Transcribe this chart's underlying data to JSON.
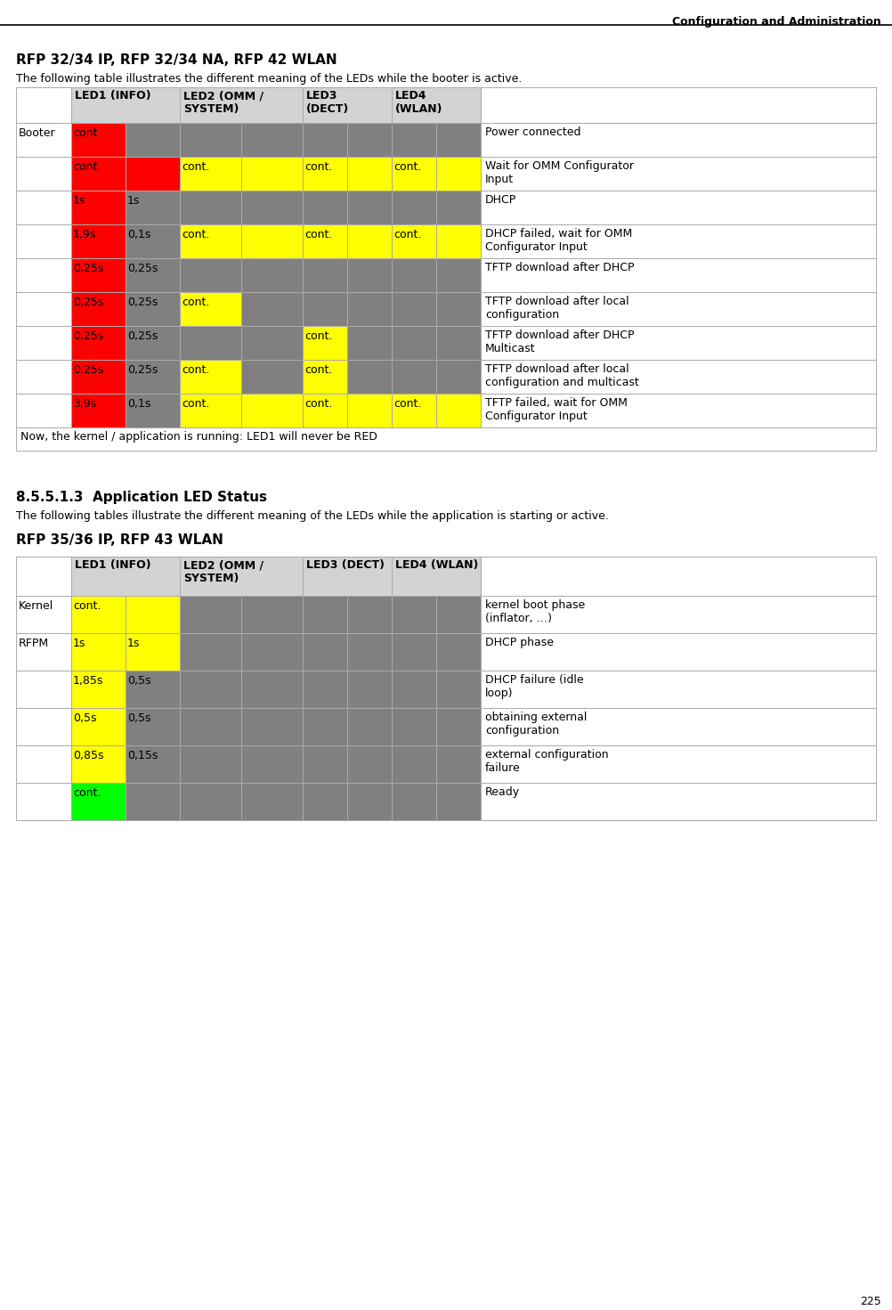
{
  "header_title": "Configuration and Administration",
  "page_number": "225",
  "section1_title": "RFP 32/34 IP, RFP 32/34 NA, RFP 42 WLAN",
  "section1_subtitle": "The following table illustrates the different meaning of the LEDs while the booter is active.",
  "section2_heading": "8.5.5.1.3  Application LED Status",
  "section2_subtitle": "The following tables illustrate the different meaning of the LEDs while the application is starting or active.",
  "section2_title": "RFP 35/36 IP, RFP 43 WLAN",
  "table1_headers": [
    "",
    "LED1 (INFO)",
    "LED2 (OMM /\nSYSTEM)",
    "LED3\n(DECT)",
    "LED4\n(WLAN)",
    ""
  ],
  "table1_rows": [
    {
      "col0": "Booter",
      "col1a": "cont.",
      "col1a_color": "#FF0000",
      "col1b": "",
      "col1b_color": "#808080",
      "col2a": "",
      "col2a_color": "#808080",
      "col2b": "",
      "col2b_color": "#808080",
      "col3a": "",
      "col3a_color": "#808080",
      "col3b": "",
      "col3b_color": "#808080",
      "col4a": "",
      "col4a_color": "#808080",
      "col4b": "",
      "col4b_color": "#808080",
      "col5": "Power connected"
    },
    {
      "col0": "",
      "col1a": "cont.",
      "col1a_color": "#FF0000",
      "col1b": "",
      "col1b_color": "#FF0000",
      "col2a": "cont.",
      "col2a_color": "#FFFF00",
      "col2b": "",
      "col2b_color": "#FFFF00",
      "col3a": "cont.",
      "col3a_color": "#FFFF00",
      "col3b": "",
      "col3b_color": "#FFFF00",
      "col4a": "cont.",
      "col4a_color": "#FFFF00",
      "col4b": "",
      "col4b_color": "#FFFF00",
      "col5": "Wait for OMM Configurator\nInput"
    },
    {
      "col0": "",
      "col1a": "1s",
      "col1a_color": "#FF0000",
      "col1b": "1s",
      "col1b_color": "#808080",
      "col2a": "",
      "col2a_color": "#808080",
      "col2b": "",
      "col2b_color": "#808080",
      "col3a": "",
      "col3a_color": "#808080",
      "col3b": "",
      "col3b_color": "#808080",
      "col4a": "",
      "col4a_color": "#808080",
      "col4b": "",
      "col4b_color": "#808080",
      "col5": "DHCP"
    },
    {
      "col0": "",
      "col1a": "1,9s",
      "col1a_color": "#FF0000",
      "col1b": "0,1s",
      "col1b_color": "#808080",
      "col2a": "cont.",
      "col2a_color": "#FFFF00",
      "col2b": "",
      "col2b_color": "#FFFF00",
      "col3a": "cont.",
      "col3a_color": "#FFFF00",
      "col3b": "",
      "col3b_color": "#FFFF00",
      "col4a": "cont.",
      "col4a_color": "#FFFF00",
      "col4b": "",
      "col4b_color": "#FFFF00",
      "col5": "DHCP failed, wait for OMM\nConfigurator Input"
    },
    {
      "col0": "",
      "col1a": "0,25s",
      "col1a_color": "#FF0000",
      "col1b": "0,25s",
      "col1b_color": "#808080",
      "col2a": "",
      "col2a_color": "#808080",
      "col2b": "",
      "col2b_color": "#808080",
      "col3a": "",
      "col3a_color": "#808080",
      "col3b": "",
      "col3b_color": "#808080",
      "col4a": "",
      "col4a_color": "#808080",
      "col4b": "",
      "col4b_color": "#808080",
      "col5": "TFTP download after DHCP"
    },
    {
      "col0": "",
      "col1a": "0,25s",
      "col1a_color": "#FF0000",
      "col1b": "0,25s",
      "col1b_color": "#808080",
      "col2a": "cont.",
      "col2a_color": "#FFFF00",
      "col2b": "",
      "col2b_color": "#808080",
      "col3a": "",
      "col3a_color": "#808080",
      "col3b": "",
      "col3b_color": "#808080",
      "col4a": "",
      "col4a_color": "#808080",
      "col4b": "",
      "col4b_color": "#808080",
      "col5": "TFTP download after local\nconfiguration"
    },
    {
      "col0": "",
      "col1a": "0,25s",
      "col1a_color": "#FF0000",
      "col1b": "0,25s",
      "col1b_color": "#808080",
      "col2a": "",
      "col2a_color": "#808080",
      "col2b": "",
      "col2b_color": "#808080",
      "col3a": "cont.",
      "col3a_color": "#FFFF00",
      "col3b": "",
      "col3b_color": "#808080",
      "col4a": "",
      "col4a_color": "#808080",
      "col4b": "",
      "col4b_color": "#808080",
      "col5": "TFTP download after DHCP\nMulticast"
    },
    {
      "col0": "",
      "col1a": "0,25s",
      "col1a_color": "#FF0000",
      "col1b": "0,25s",
      "col1b_color": "#808080",
      "col2a": "cont.",
      "col2a_color": "#FFFF00",
      "col2b": "",
      "col2b_color": "#808080",
      "col3a": "cont.",
      "col3a_color": "#FFFF00",
      "col3b": "",
      "col3b_color": "#808080",
      "col4a": "",
      "col4a_color": "#808080",
      "col4b": "",
      "col4b_color": "#808080",
      "col5": "TFTP download after local\nconfiguration and multicast"
    },
    {
      "col0": "",
      "col1a": "3,9s",
      "col1a_color": "#FF0000",
      "col1b": "0,1s",
      "col1b_color": "#808080",
      "col2a": "cont.",
      "col2a_color": "#FFFF00",
      "col2b": "",
      "col2b_color": "#FFFF00",
      "col3a": "cont.",
      "col3a_color": "#FFFF00",
      "col3b": "",
      "col3b_color": "#FFFF00",
      "col4a": "cont.",
      "col4a_color": "#FFFF00",
      "col4b": "",
      "col4b_color": "#FFFF00",
      "col5": "TFTP failed, wait for OMM\nConfigurator Input"
    }
  ],
  "table1_footer": "Now, the kernel / application is running: LED1 will never be RED",
  "table2_headers": [
    "",
    "LED1 (INFO)",
    "LED2 (OMM /\nSYSTEM)",
    "LED3 (DECT)",
    "LED4 (WLAN)",
    ""
  ],
  "table2_rows": [
    {
      "col0": "Kernel",
      "col1a": "cont.",
      "col1a_color": "#FFFF00",
      "col1b": "",
      "col1b_color": "#FFFF00",
      "col2a": "",
      "col2a_color": "#808080",
      "col2b": "",
      "col2b_color": "#808080",
      "col3a": "",
      "col3a_color": "#808080",
      "col3b": "",
      "col3b_color": "#808080",
      "col4a": "",
      "col4a_color": "#808080",
      "col4b": "",
      "col4b_color": "#808080",
      "col5": "kernel boot phase\n(inflator, …)"
    },
    {
      "col0": "RFPM",
      "col1a": "1s",
      "col1a_color": "#FFFF00",
      "col1b": "1s",
      "col1b_color": "#FFFF00",
      "col2a": "",
      "col2a_color": "#808080",
      "col2b": "",
      "col2b_color": "#808080",
      "col3a": "",
      "col3a_color": "#808080",
      "col3b": "",
      "col3b_color": "#808080",
      "col4a": "",
      "col4a_color": "#808080",
      "col4b": "",
      "col4b_color": "#808080",
      "col5": "DHCP phase"
    },
    {
      "col0": "",
      "col1a": "1,85s",
      "col1a_color": "#FFFF00",
      "col1b": "0,5s",
      "col1b_color": "#808080",
      "col2a": "",
      "col2a_color": "#808080",
      "col2b": "",
      "col2b_color": "#808080",
      "col3a": "",
      "col3a_color": "#808080",
      "col3b": "",
      "col3b_color": "#808080",
      "col4a": "",
      "col4a_color": "#808080",
      "col4b": "",
      "col4b_color": "#808080",
      "col5": "DHCP failure (idle\nloop)"
    },
    {
      "col0": "",
      "col1a": "0,5s",
      "col1a_color": "#FFFF00",
      "col1b": "0,5s",
      "col1b_color": "#808080",
      "col2a": "",
      "col2a_color": "#808080",
      "col2b": "",
      "col2b_color": "#808080",
      "col3a": "",
      "col3a_color": "#808080",
      "col3b": "",
      "col3b_color": "#808080",
      "col4a": "",
      "col4a_color": "#808080",
      "col4b": "",
      "col4b_color": "#808080",
      "col5": "obtaining external\nconfiguration"
    },
    {
      "col0": "",
      "col1a": "0,85s",
      "col1a_color": "#FFFF00",
      "col1b": "0,15s",
      "col1b_color": "#808080",
      "col2a": "",
      "col2a_color": "#808080",
      "col2b": "",
      "col2b_color": "#808080",
      "col3a": "",
      "col3a_color": "#808080",
      "col3b": "",
      "col3b_color": "#808080",
      "col4a": "",
      "col4a_color": "#808080",
      "col4b": "",
      "col4b_color": "#808080",
      "col5": "external configuration\nfailure"
    },
    {
      "col0": "",
      "col1a": "cont.",
      "col1a_color": "#00FF00",
      "col1b": "",
      "col1b_color": "#808080",
      "col2a": "",
      "col2a_color": "#808080",
      "col2b": "",
      "col2b_color": "#808080",
      "col3a": "",
      "col3a_color": "#808080",
      "col3b": "",
      "col3b_color": "#808080",
      "col4a": "",
      "col4a_color": "#808080",
      "col4b": "",
      "col4b_color": "#808080",
      "col5": "Ready"
    }
  ],
  "bg_color": "#FFFFFF",
  "border_color": "#AAAAAA",
  "text_color": "#000000"
}
